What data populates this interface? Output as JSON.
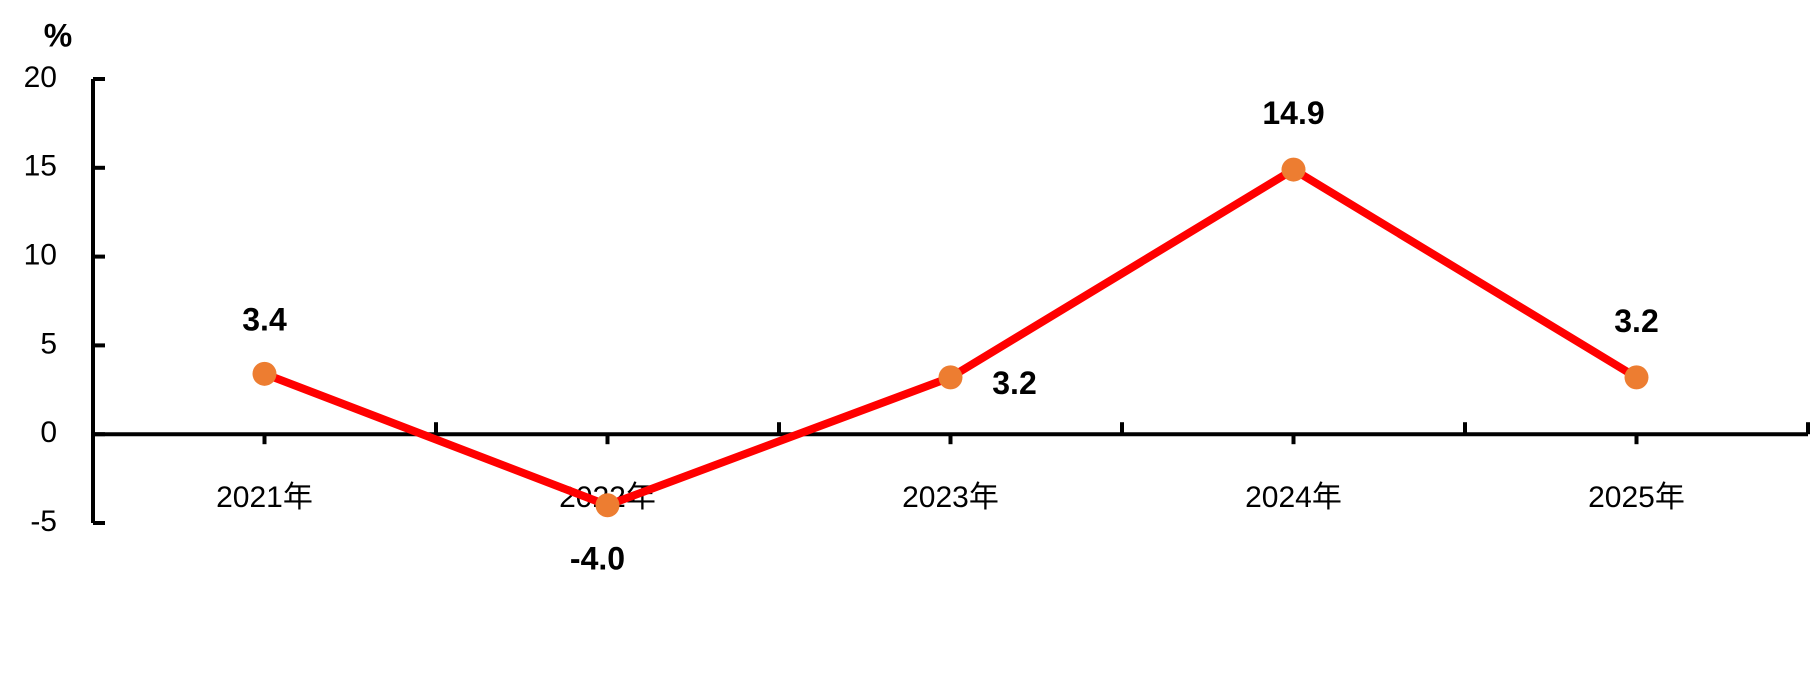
{
  "chart_data": {
    "type": "line",
    "y_axis_label": "%",
    "categories": [
      "2021年",
      "2022年",
      "2023年",
      "2024年",
      "2025年"
    ],
    "values": [
      3.4,
      -4.0,
      3.2,
      14.9,
      3.2
    ],
    "value_labels": [
      "3.4",
      "-4.0",
      "3.2",
      "14.9",
      "3.2"
    ],
    "color": "#ff0000",
    "marker_color": "#ed7d31",
    "ylim": [
      -5,
      20
    ],
    "yticks": [
      -5,
      0,
      5,
      10,
      15,
      20
    ]
  }
}
